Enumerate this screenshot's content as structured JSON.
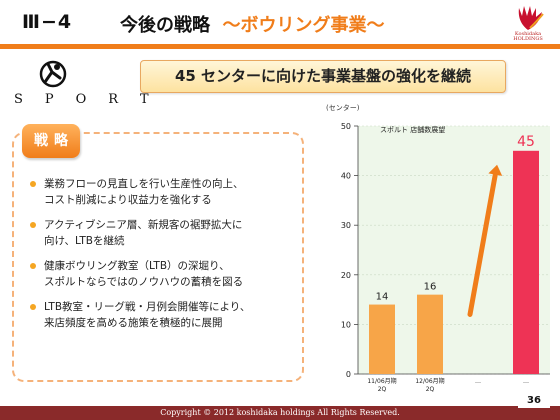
{
  "header": {
    "section_number": "Ⅲ−4",
    "title_main": "今後の戦略",
    "title_sub": "～ボウリング事業～",
    "accent_color": "#f07d1a"
  },
  "logo": {
    "name": "Koshidaka HOLDINGS",
    "icon": "hand-logo-icon"
  },
  "brand": {
    "word": "SPORT",
    "icon": "sport-figure-icon"
  },
  "banner": {
    "text": "45 センターに向けた事業基盤の強化を継続"
  },
  "strategy": {
    "badge": "戦略",
    "bullets": [
      {
        "lines": [
          "業務フローの見直しを行い生産性の向上、",
          "コスト削減により収益力を強化する"
        ]
      },
      {
        "lines": [
          "アクティブシニア層、新規客の裾野拡大に",
          "向け、LTBを継続"
        ]
      },
      {
        "lines": [
          "健康ボウリング教室（LTB）の深堀り、",
          "スポルトならではのノウハウの蓄積を図る"
        ]
      },
      {
        "lines": [
          "LTB教室・リーグ戦・月例会開催等により、",
          "来店頻度を高める施策を積極的に展開"
        ]
      }
    ]
  },
  "chart_data": {
    "type": "bar",
    "title": "スポルト 店舗数展望",
    "ylabel": "(センター)",
    "ylim": [
      0,
      50
    ],
    "yticks": [
      "0",
      "10",
      "20",
      "30",
      "40",
      "50"
    ],
    "categories": [
      "11/06月期\n2Q",
      "12/06月期\n2Q",
      "…",
      "…"
    ],
    "values": [
      14,
      16,
      null,
      45
    ],
    "data_labels": [
      "14",
      "16",
      "",
      "45"
    ],
    "bar_colors": [
      "#f7a548",
      "#f7a548",
      "",
      "#ee3355"
    ],
    "arrow_color": "#f07d1a",
    "background_color": "#eef7ea",
    "grid": true
  },
  "footer": {
    "copyright": "Copyright © 2012 koshidaka holdings All Rights Reserved.",
    "page_number": "36",
    "color": "#8a2a2a"
  }
}
